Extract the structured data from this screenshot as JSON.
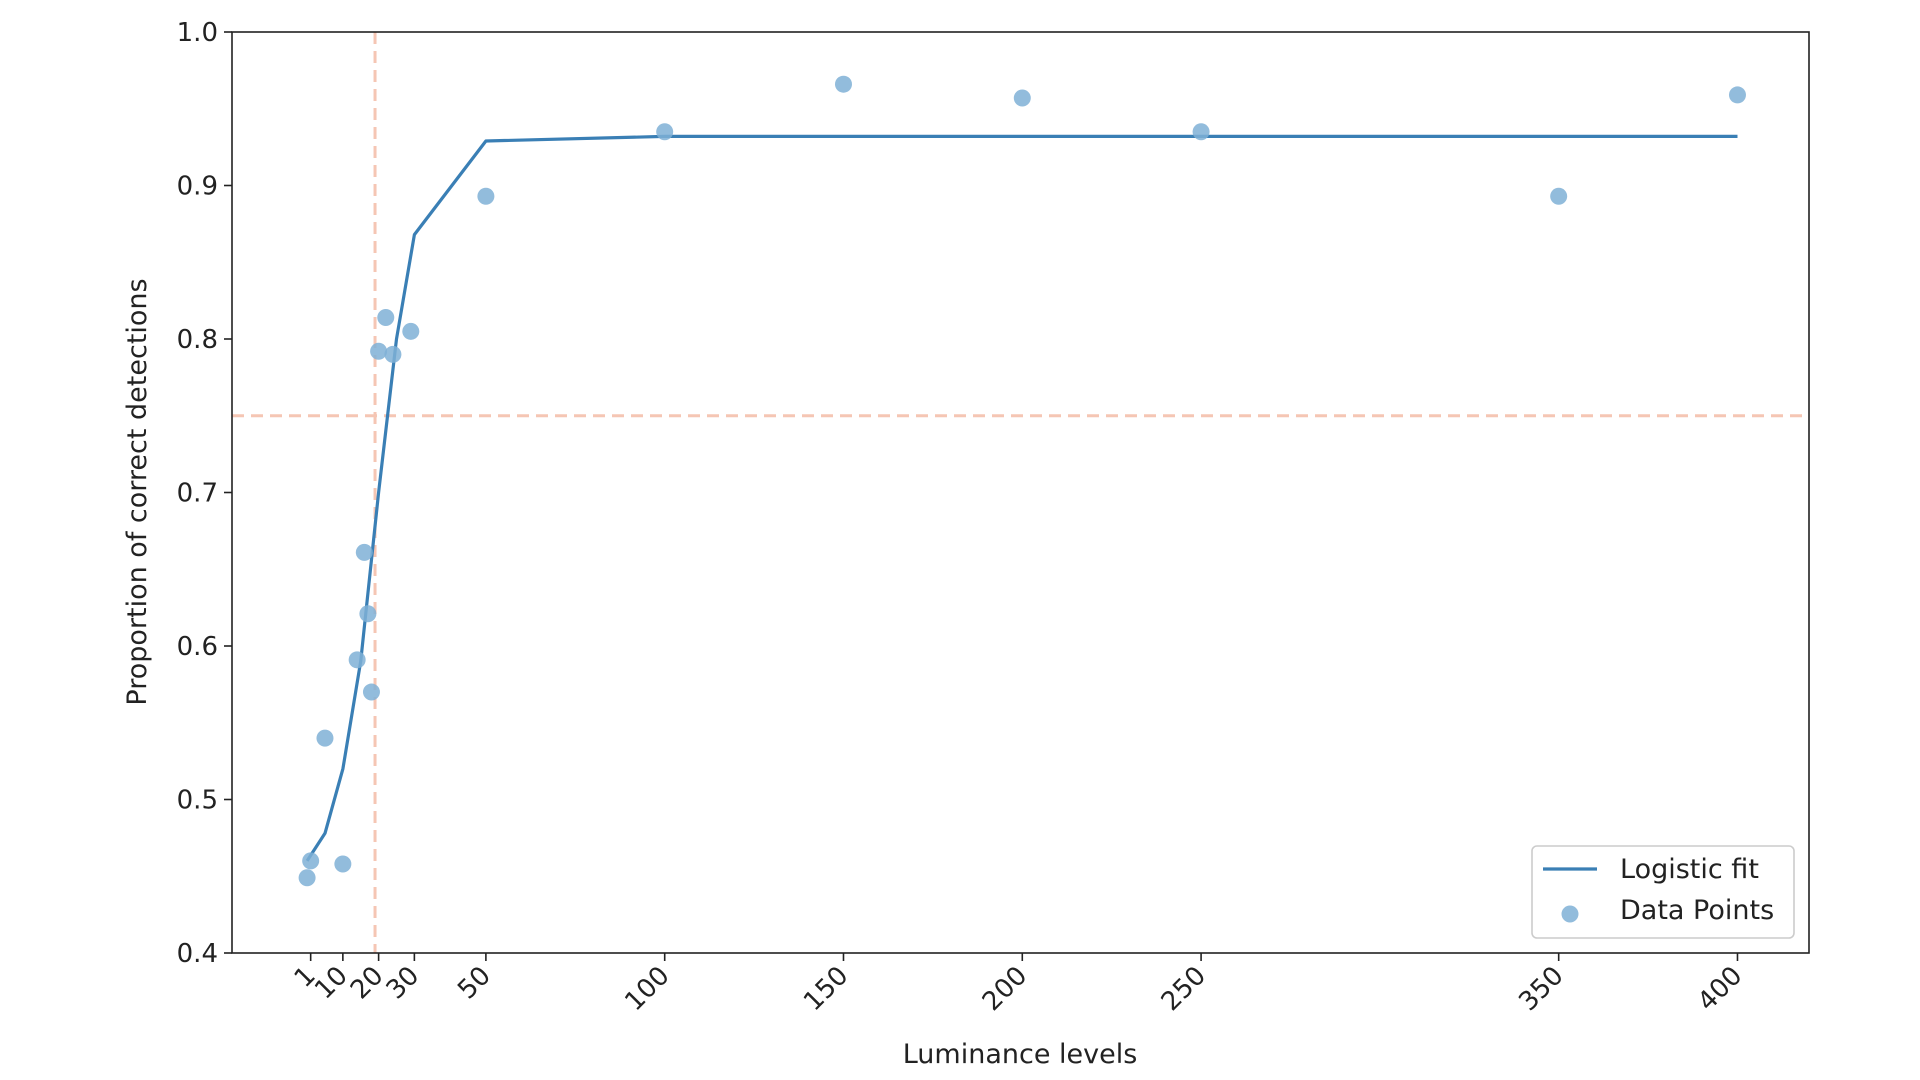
{
  "chart_data": {
    "type": "scatter",
    "title": "",
    "xlabel": "Luminance levels",
    "ylabel": "Proportion of correct detections",
    "xlim": [
      -21,
      420
    ],
    "ylim": [
      0.4,
      1.0
    ],
    "xticks": [
      1,
      10,
      20,
      30,
      50,
      100,
      150,
      200,
      250,
      350,
      400
    ],
    "xtick_labels": [
      "1",
      "10",
      "20",
      "30",
      "50",
      "100",
      "150",
      "200",
      "250",
      "350",
      "400"
    ],
    "xtick_rotation_deg": 45,
    "yticks": [
      0.4,
      0.5,
      0.6,
      0.7,
      0.8,
      0.9,
      1.0
    ],
    "ytick_labels": [
      "0.4",
      "0.5",
      "0.6",
      "0.7",
      "0.8",
      "0.9",
      "1.0"
    ],
    "grid": false,
    "legend_position": "bottom-right",
    "colors": {
      "fit_line": "#3a7fb5",
      "points": "#7fb0d6",
      "threshold_lines": "#f5c6b4",
      "axes": "#222222"
    },
    "series": [
      {
        "name": "Logistic fit",
        "kind": "line",
        "x": [
          0,
          5,
          10,
          15,
          20,
          25,
          30,
          50,
          100,
          150,
          200,
          250,
          350,
          400
        ],
        "y": [
          0.46,
          0.478,
          0.52,
          0.59,
          0.7,
          0.8,
          0.868,
          0.929,
          0.932,
          0.932,
          0.932,
          0.932,
          0.932,
          0.932
        ]
      },
      {
        "name": "Data Points",
        "kind": "scatter",
        "x": [
          0,
          1,
          5,
          10,
          14,
          16,
          17,
          18,
          20,
          22,
          24,
          29,
          50,
          100,
          150,
          200,
          250,
          350,
          400
        ],
        "y": [
          0.449,
          0.46,
          0.54,
          0.458,
          0.591,
          0.661,
          0.621,
          0.57,
          0.792,
          0.814,
          0.79,
          0.805,
          0.893,
          0.935,
          0.966,
          0.957,
          0.935,
          0.893,
          0.959
        ]
      }
    ],
    "reference_lines": [
      {
        "orientation": "vertical",
        "x": 19,
        "style": "dashed"
      },
      {
        "orientation": "horizontal",
        "y": 0.75,
        "style": "dashed"
      }
    ]
  }
}
